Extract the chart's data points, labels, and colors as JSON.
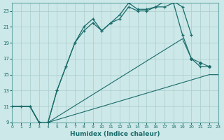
{
  "xlabel": "Humidex (Indice chaleur)",
  "bg_color": "#cde8e8",
  "grid_color": "#aacccc",
  "line_color": "#1a6b6b",
  "xlim": [
    0,
    23
  ],
  "ylim": [
    9,
    24
  ],
  "yticks": [
    9,
    11,
    13,
    15,
    17,
    19,
    21,
    23
  ],
  "xticks": [
    0,
    1,
    2,
    3,
    4,
    5,
    6,
    7,
    8,
    9,
    10,
    11,
    12,
    13,
    14,
    15,
    16,
    17,
    18,
    19,
    20,
    21,
    22,
    23
  ],
  "line1_x": [
    0,
    1,
    2,
    3,
    4,
    22,
    23
  ],
  "line1_y": [
    11,
    11,
    11,
    9,
    9,
    15,
    15
  ],
  "line2_x": [
    0,
    1,
    2,
    3,
    4,
    19,
    20,
    21,
    22
  ],
  "line2_y": [
    11,
    11,
    11,
    9,
    9,
    19.5,
    17,
    16.5,
    16
  ],
  "line3_x": [
    2,
    3,
    4,
    5,
    6,
    7,
    8,
    9,
    10,
    11,
    12,
    13,
    14,
    15,
    16,
    17,
    18,
    19,
    20
  ],
  "line3_y": [
    11,
    9,
    9,
    13,
    16,
    19,
    20.5,
    21.5,
    20.5,
    21.5,
    22.5,
    24,
    23.2,
    23.2,
    23.5,
    24.2,
    24.2,
    23.5,
    20
  ],
  "line4_x": [
    0,
    1,
    2,
    3,
    4,
    5,
    6,
    7,
    8,
    9,
    10,
    11,
    12,
    13,
    14,
    15,
    16,
    17,
    18,
    19,
    20,
    21,
    22
  ],
  "line4_y": [
    11,
    11,
    11,
    9,
    9,
    13,
    16,
    19,
    21,
    22,
    20.5,
    21.5,
    22,
    23.5,
    23,
    23,
    23.5,
    23.5,
    24,
    20,
    17,
    16,
    16
  ]
}
